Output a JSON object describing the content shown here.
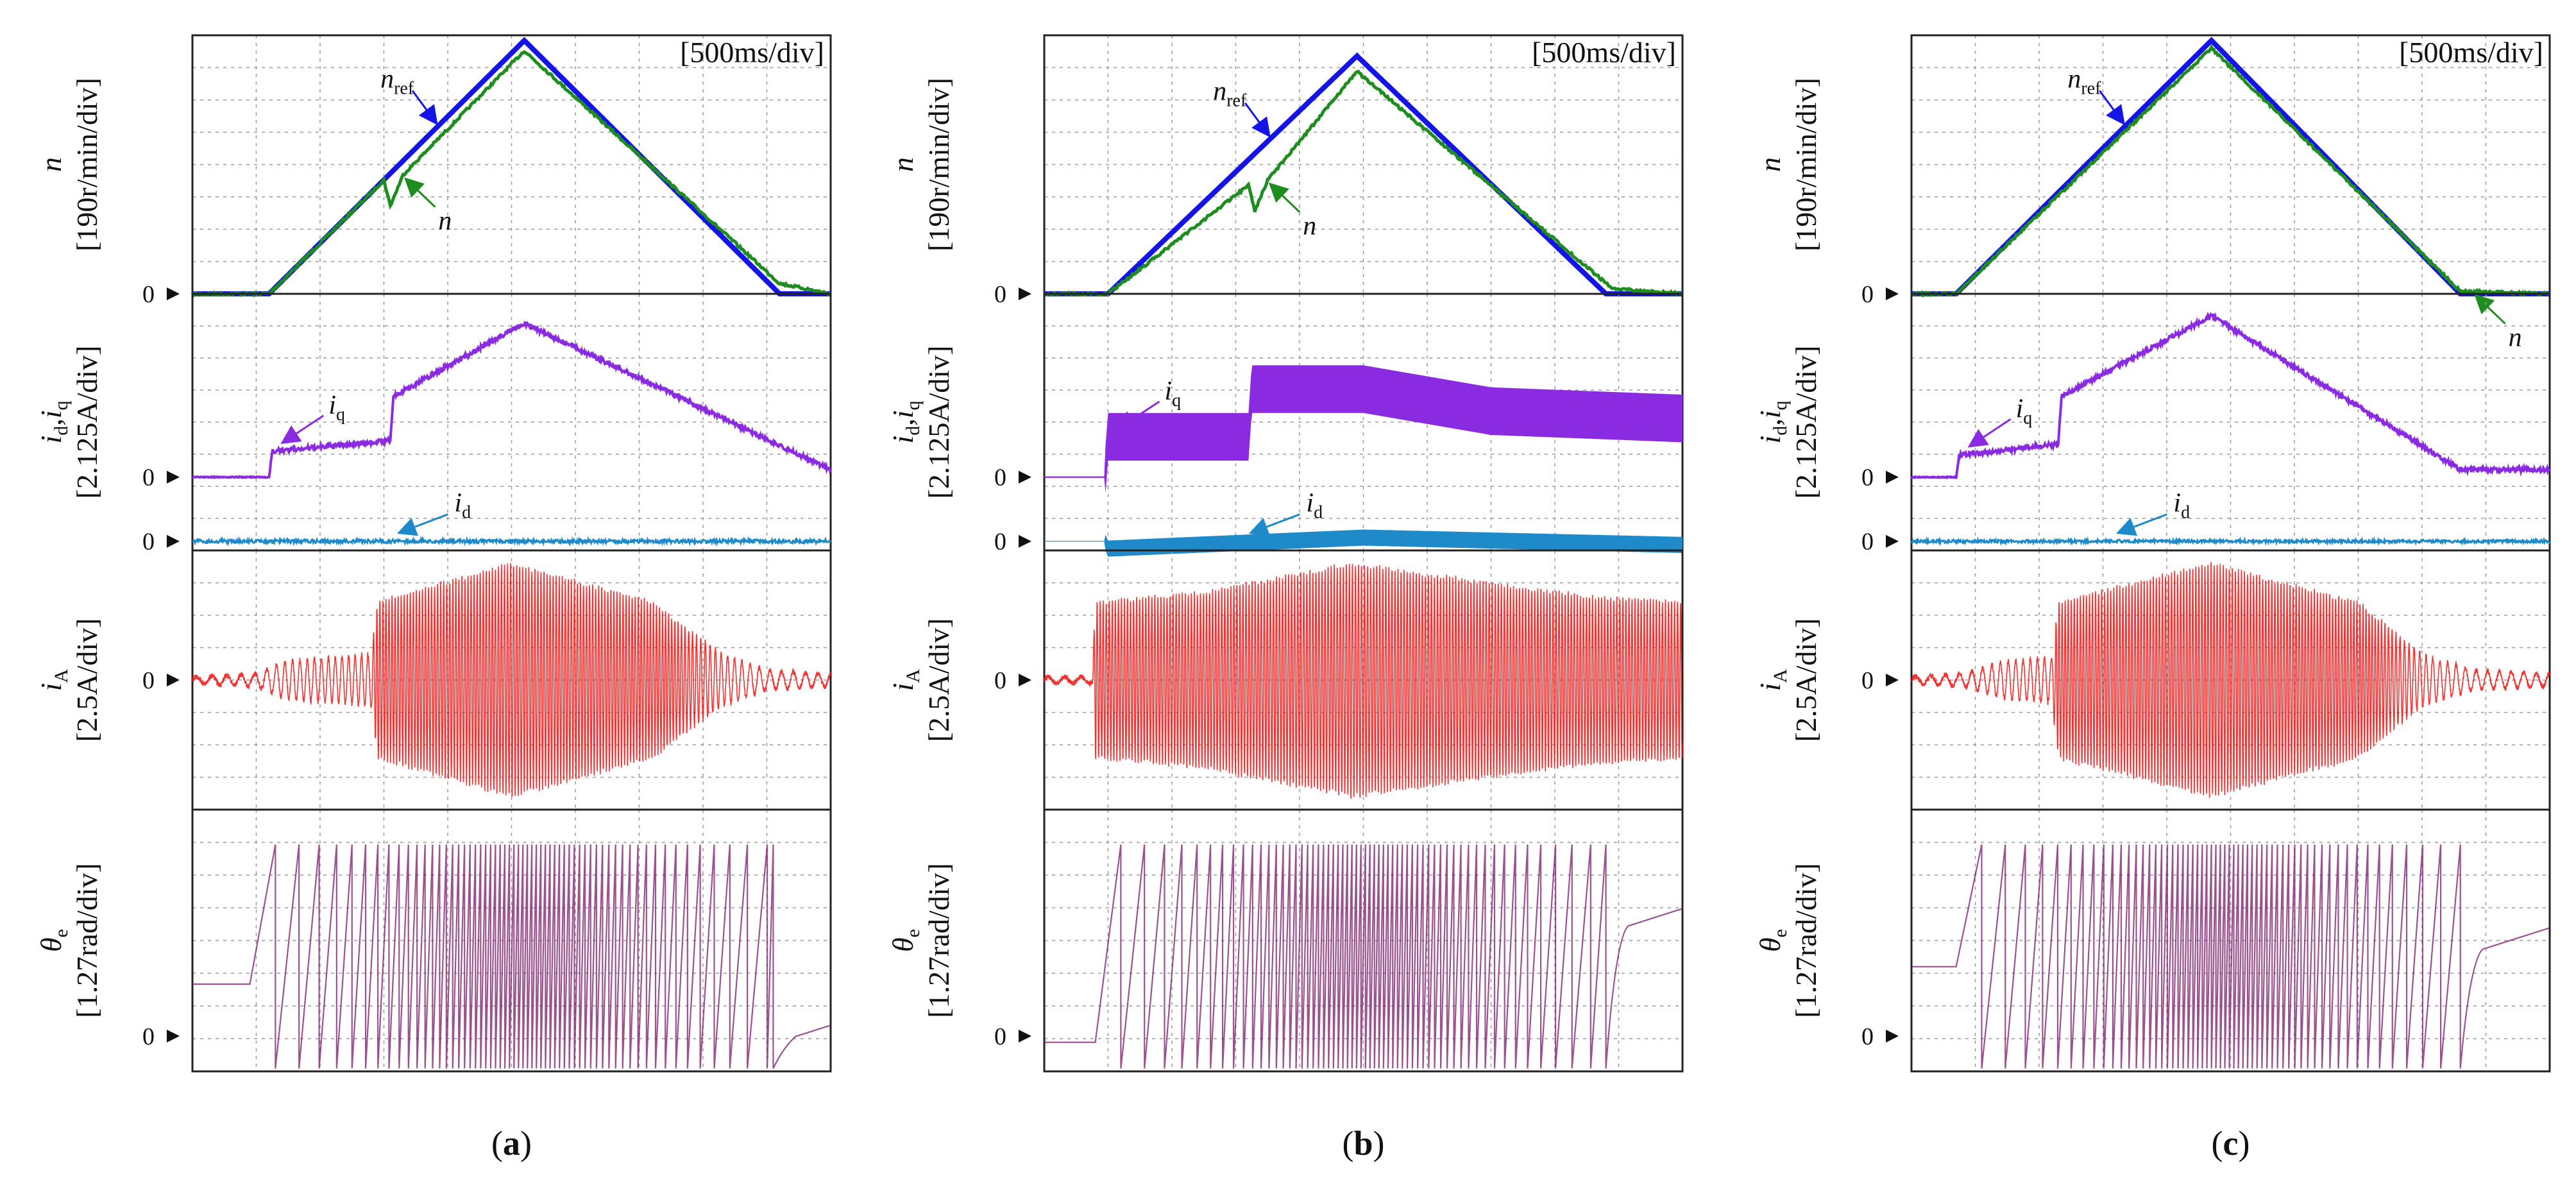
{
  "figure": {
    "captions": [
      {
        "open": "(",
        "letter": "a",
        "close": ")"
      },
      {
        "open": "(",
        "letter": "b",
        "close": ")"
      },
      {
        "open": "(",
        "letter": "c",
        "close": ")"
      }
    ],
    "time_scale_label": "[500ms/div]",
    "zero_label": "0",
    "colors": {
      "n_ref": "#1414e6",
      "n": "#1e8c1e",
      "iq": "#8a2be2",
      "id": "#1f8ac9",
      "iA": "#ee1010",
      "theta": "#7a1a6a",
      "grid": "#9a9a9a",
      "frame": "#222222"
    },
    "rows": [
      {
        "var": "n",
        "var_sub": "",
        "var2": "",
        "var2_sub": "",
        "scale": "[190r/min/div]"
      },
      {
        "var": "i",
        "var_sub": "d",
        "var2": "i",
        "var2_sub": "q",
        "scale": "[2.125A/div]"
      },
      {
        "var": "i",
        "var_sub": "A",
        "var2": "",
        "var2_sub": "",
        "scale": "[2.5A/div]"
      },
      {
        "var": "θ",
        "var_sub": "e",
        "var2": "",
        "var2_sub": "",
        "scale": "[1.27rad/div]"
      }
    ],
    "trace_tags": {
      "nref": {
        "base": "n",
        "sub": "ref"
      },
      "n": {
        "base": "n",
        "sub": ""
      },
      "iq": {
        "base": "i",
        "sub": "q"
      },
      "id": {
        "base": "i",
        "sub": "d"
      }
    }
  },
  "chart_data": [
    {
      "type": "line",
      "title": "(a)",
      "x_unit": "div (500 ms/div)",
      "xlim": [
        0,
        10
      ],
      "n": {
        "ylim": [
          0,
          5
        ],
        "n_ref": {
          "x": [
            0,
            1.2,
            5.2,
            9.2,
            10
          ],
          "y": [
            0,
            0,
            4.9,
            0,
            0
          ]
        },
        "n": {
          "x": [
            0,
            1.2,
            3.0,
            3.1,
            3.3,
            5.2,
            9.2,
            10
          ],
          "y": [
            0,
            0,
            2.2,
            1.7,
            2.3,
            4.7,
            0.2,
            0
          ]
        }
      },
      "id_iq": {
        "ylim": [
          -1,
          2.5
        ],
        "iq": {
          "x": [
            0,
            1.2,
            1.25,
            3.1,
            3.15,
            5.2,
            10
          ],
          "y": [
            0,
            0,
            0.35,
            0.5,
            1.1,
            2.1,
            0.1
          ]
        },
        "iq_noise": 0.06,
        "id": {
          "x": [
            0,
            10
          ],
          "y": [
            0,
            0
          ]
        },
        "id_noise": 0.05
      },
      "iA": {
        "ylim": [
          -2,
          2
        ],
        "envelope": {
          "x": [
            0,
            1.0,
            1.5,
            2.8,
            2.9,
            5.0,
            7.2,
            8.3,
            9.0,
            10
          ],
          "y": [
            0.05,
            0.1,
            0.3,
            0.4,
            1.2,
            1.8,
            1.2,
            0.4,
            0.15,
            0.1
          ]
        }
      },
      "theta": {
        "ylim": [
          0,
          4.5
        ],
        "initial": 1.5,
        "final_start": 0.1,
        "sawtooth_range": [
          1.3,
          9.1
        ],
        "peak": 3.9
      }
    },
    {
      "type": "line",
      "title": "(b)",
      "x_unit": "div (500 ms/div)",
      "xlim": [
        0,
        10
      ],
      "n": {
        "ylim": [
          0,
          5
        ],
        "n_ref": {
          "x": [
            0,
            1.0,
            4.9,
            8.8,
            10
          ],
          "y": [
            0,
            0,
            4.6,
            0,
            0
          ]
        },
        "n": {
          "x": [
            0,
            1.0,
            3.2,
            3.3,
            3.5,
            4.9,
            8.9,
            10
          ],
          "y": [
            0,
            0,
            2.1,
            1.6,
            2.2,
            4.3,
            0.1,
            0
          ]
        }
      },
      "id_iq": {
        "ylim": [
          -1,
          2.5
        ],
        "iq": {
          "x": [
            0,
            0.95,
            1.0,
            3.2,
            3.25,
            5.0,
            7.0,
            10
          ],
          "y": [
            0,
            0,
            0.55,
            0.55,
            1.2,
            1.2,
            0.9,
            0.8
          ]
        },
        "iq_band": 0.65,
        "id": {
          "x": [
            0,
            0.95,
            1.0,
            5.0,
            10
          ],
          "y": [
            0,
            0,
            -0.1,
            0.05,
            -0.05
          ]
        },
        "id_band": 0.22
      },
      "iA": {
        "ylim": [
          -2,
          2
        ],
        "envelope": {
          "x": [
            0,
            0.75,
            0.8,
            2.5,
            4.8,
            7.0,
            8.5,
            10
          ],
          "y": [
            0.05,
            0.05,
            1.2,
            1.35,
            1.8,
            1.5,
            1.3,
            1.2
          ]
        }
      },
      "theta": {
        "ylim": [
          0,
          4.5
        ],
        "initial": 0.5,
        "final_start": 2.0,
        "sawtooth_range": [
          1.2,
          8.8
        ],
        "peak": 3.9
      }
    },
    {
      "type": "line",
      "title": "(c)",
      "x_unit": "div (500 ms/div)",
      "xlim": [
        0,
        10
      ],
      "n": {
        "ylim": [
          0,
          5
        ],
        "n_ref": {
          "x": [
            0,
            0.7,
            4.7,
            8.6,
            10
          ],
          "y": [
            0,
            0,
            4.9,
            0,
            0
          ]
        },
        "n": {
          "x": [
            0,
            0.7,
            4.7,
            8.6,
            10
          ],
          "y": [
            0,
            0,
            4.75,
            0.05,
            0
          ]
        }
      },
      "id_iq": {
        "ylim": [
          -1,
          2.5
        ],
        "iq": {
          "x": [
            0,
            0.7,
            0.75,
            2.3,
            2.35,
            4.7,
            8.6,
            10
          ],
          "y": [
            0,
            0,
            0.3,
            0.45,
            1.1,
            2.2,
            0.1,
            0.1
          ]
        },
        "iq_noise": 0.06,
        "id": {
          "x": [
            0,
            10
          ],
          "y": [
            0,
            0
          ]
        },
        "id_noise": 0.04
      },
      "iA": {
        "ylim": [
          -2,
          2
        ],
        "envelope": {
          "x": [
            0,
            0.8,
            1.5,
            2.2,
            2.3,
            4.7,
            7.0,
            8.0,
            8.8,
            10
          ],
          "y": [
            0.05,
            0.1,
            0.3,
            0.35,
            1.2,
            1.8,
            1.2,
            0.4,
            0.15,
            0.1
          ]
        }
      },
      "theta": {
        "ylim": [
          0,
          4.5
        ],
        "initial": 1.8,
        "final_start": 1.6,
        "sawtooth_range": [
          1.1,
          8.6
        ],
        "peak": 3.9
      }
    }
  ]
}
